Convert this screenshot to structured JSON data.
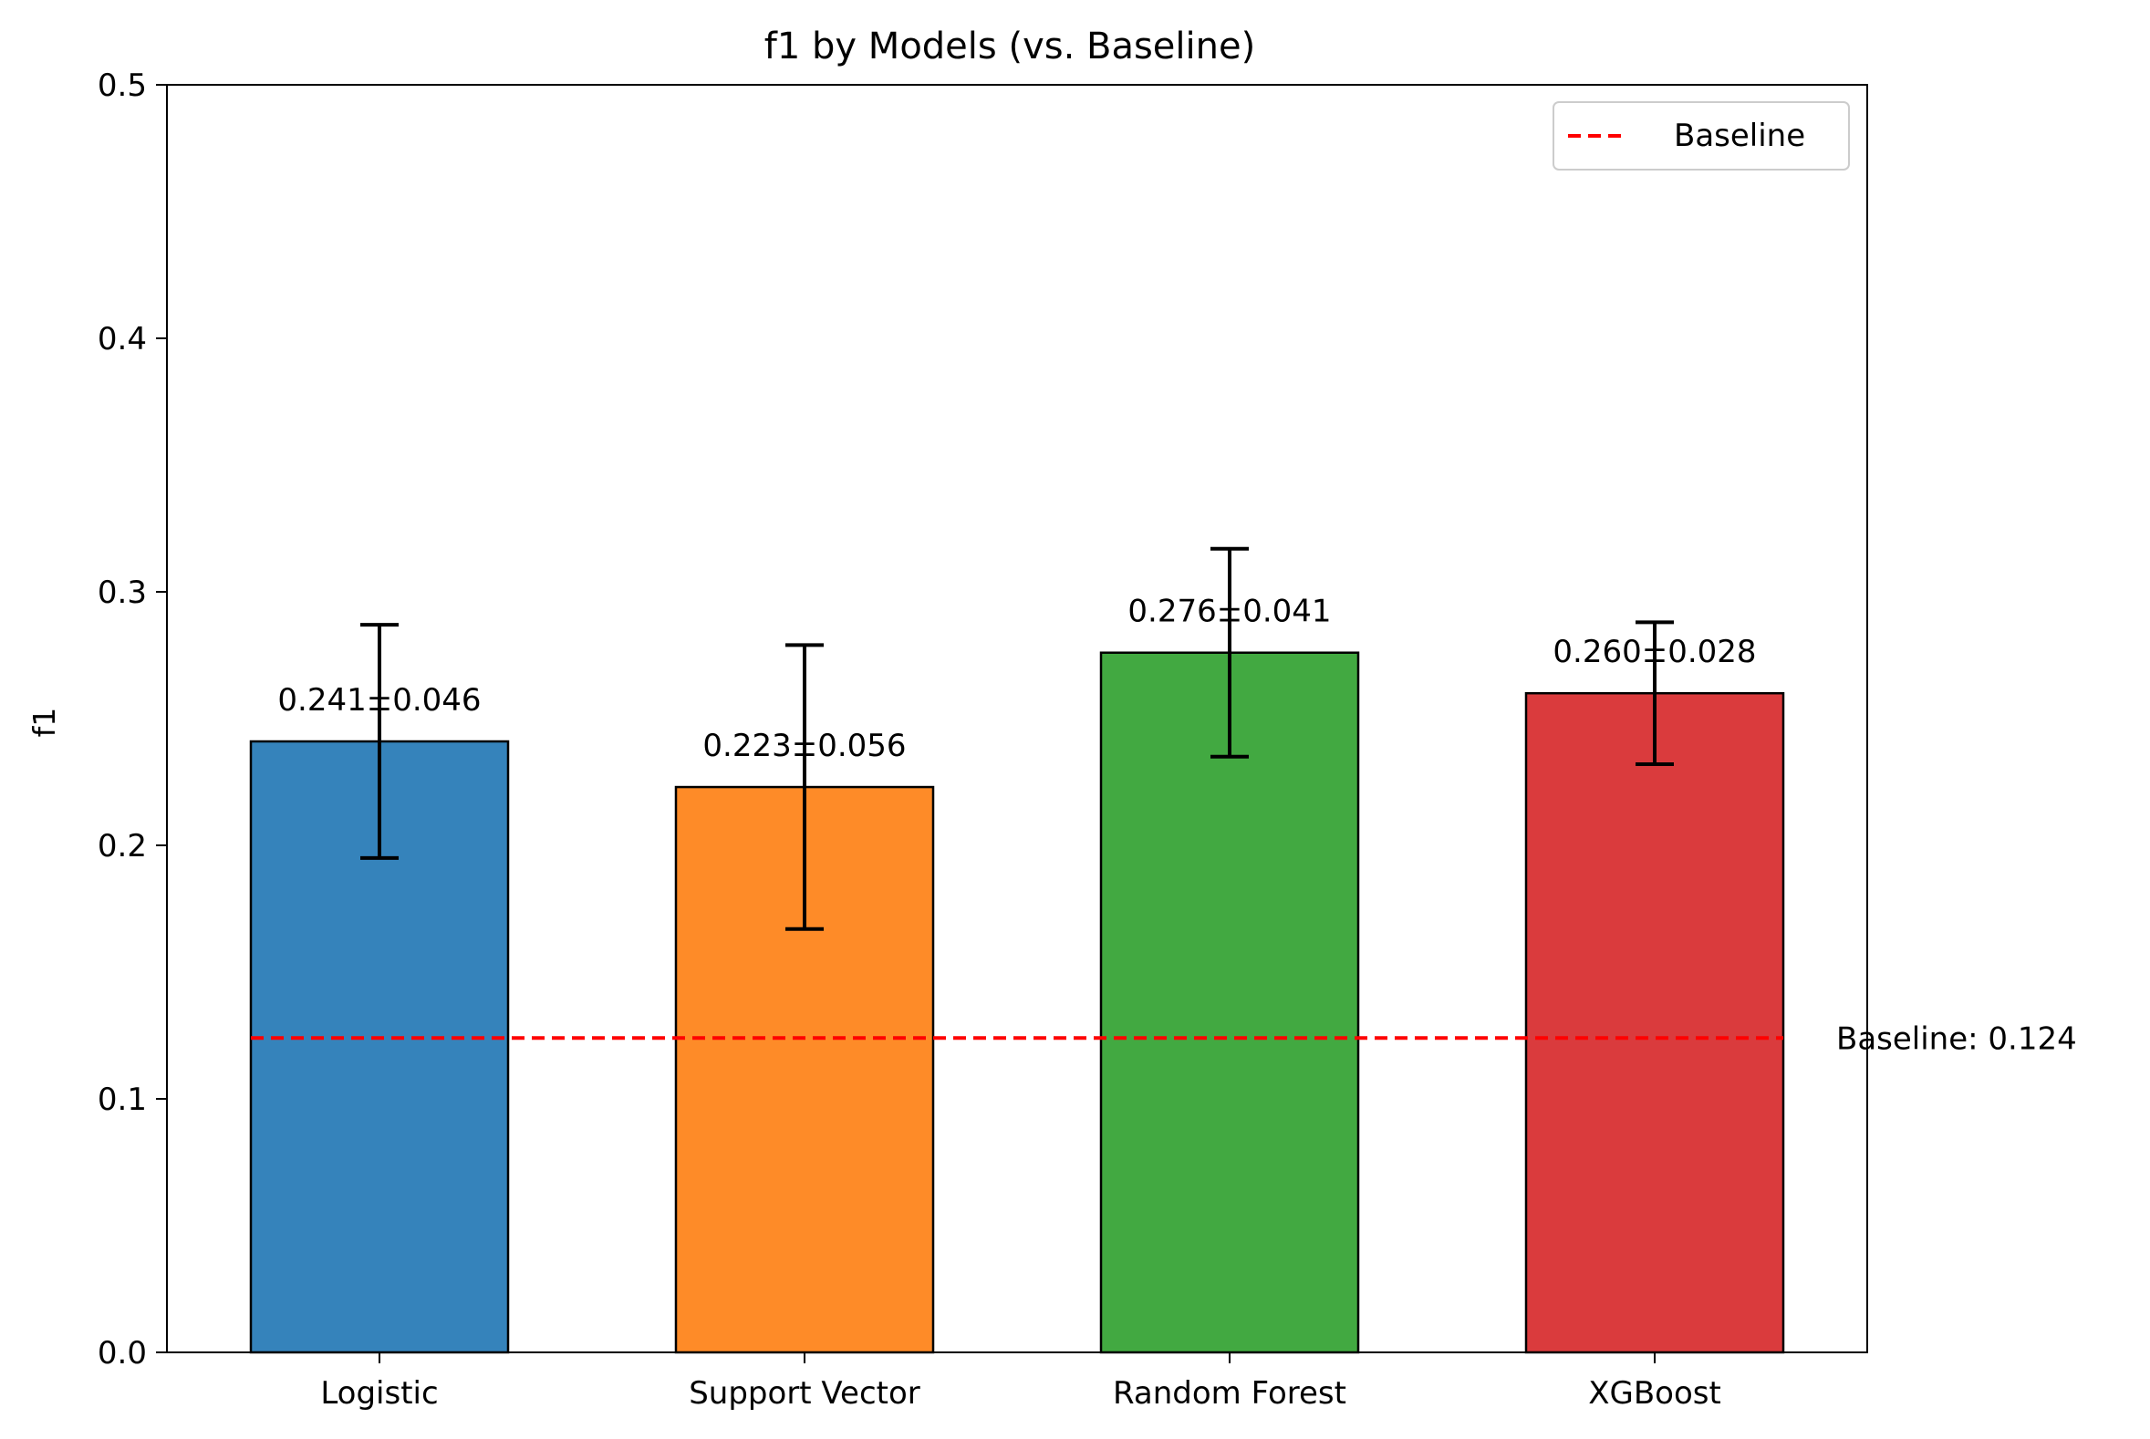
{
  "chart_data": {
    "type": "bar",
    "title": "f1 by Models (vs. Baseline)",
    "xlabel": "",
    "ylabel": "f1",
    "ylim": [
      0,
      0.5
    ],
    "yticks": [
      0.0,
      0.1,
      0.2,
      0.3,
      0.4,
      0.5
    ],
    "ytick_labels": [
      "0.0",
      "0.1",
      "0.2",
      "0.3",
      "0.4",
      "0.5"
    ],
    "categories": [
      "Logistic",
      "Support Vector",
      "Random Forest",
      "XGBoost"
    ],
    "values": [
      0.241,
      0.223,
      0.276,
      0.26
    ],
    "errors": [
      0.046,
      0.056,
      0.041,
      0.028
    ],
    "value_labels": [
      "0.241±0.046",
      "0.223±0.056",
      "0.276±0.041",
      "0.260±0.028"
    ],
    "colors": [
      "#3583bb",
      "#fe8b28",
      "#42a941",
      "#da3b3d"
    ],
    "baseline": {
      "value": 0.124,
      "label": "Baseline: 0.124",
      "color": "#ff0000",
      "style": "dashed"
    },
    "legend": {
      "position": "top-right",
      "entries": [
        "Baseline"
      ]
    },
    "grid": false
  }
}
